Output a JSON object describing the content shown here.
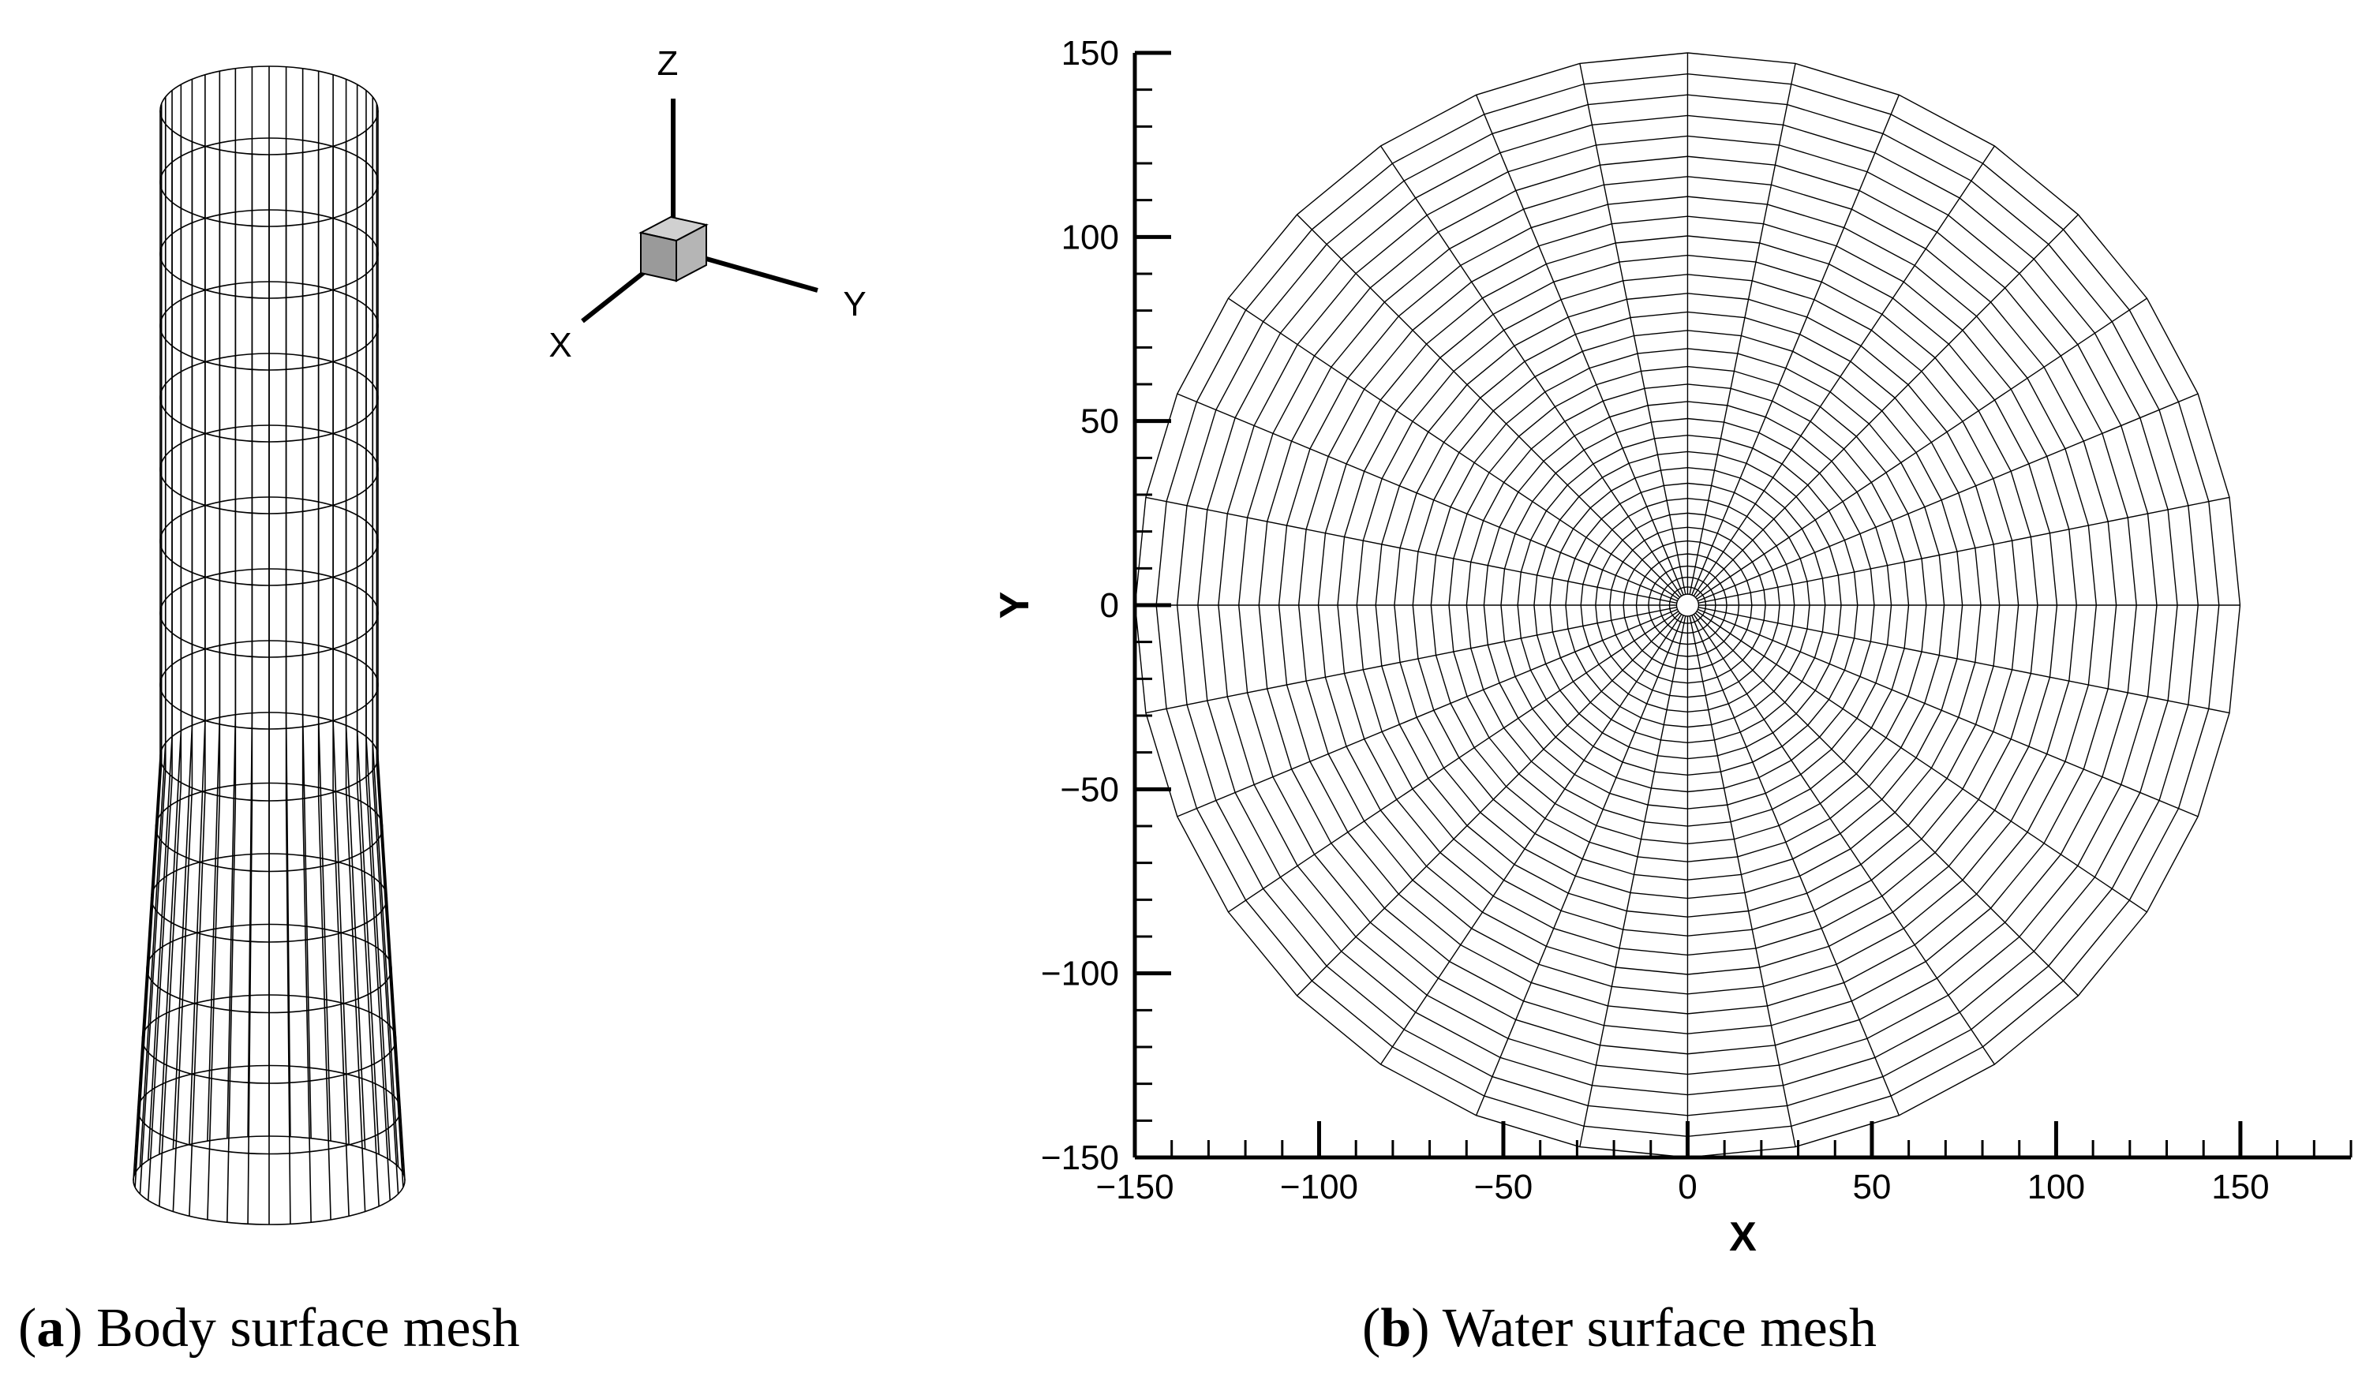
{
  "panel_a": {
    "triad": {
      "z": "Z",
      "y": "Y",
      "x": "X"
    }
  },
  "chart_data": {
    "type": "polar-mesh",
    "xlabel": "X",
    "ylabel": "Y",
    "color": "#000000",
    "xlim": [
      -150,
      180
    ],
    "ylim": [
      -150,
      150
    ],
    "xticks": [
      {
        "value": -150,
        "label": "−150"
      },
      {
        "value": -100,
        "label": "−100"
      },
      {
        "value": -50,
        "label": "−50"
      },
      0,
      50,
      100,
      150
    ],
    "yticks": [
      {
        "value": -150,
        "label": "−150"
      },
      {
        "value": -100,
        "label": "−100"
      },
      {
        "value": -50,
        "label": "−50"
      },
      0,
      50,
      100,
      150
    ],
    "xminorticks": [
      -140,
      -130,
      -120,
      -110,
      -90,
      -80,
      -70,
      -60,
      -40,
      -30,
      -20,
      -10,
      10,
      20,
      30,
      40,
      60,
      70,
      80,
      90,
      110,
      120,
      130,
      140,
      160,
      170,
      180
    ],
    "yminorticks": [
      -140,
      -130,
      -120,
      -110,
      -90,
      -80,
      -70,
      -60,
      -40,
      -30,
      -20,
      -10,
      10,
      20,
      30,
      40,
      60,
      70,
      80,
      90,
      110,
      120,
      130,
      140
    ]
  },
  "captions": [
    {
      "open": "(",
      "label": "a",
      "text": ") Body surface mesh"
    },
    {
      "open": "(",
      "label": "b",
      "text": ") Water surface mesh"
    }
  ]
}
